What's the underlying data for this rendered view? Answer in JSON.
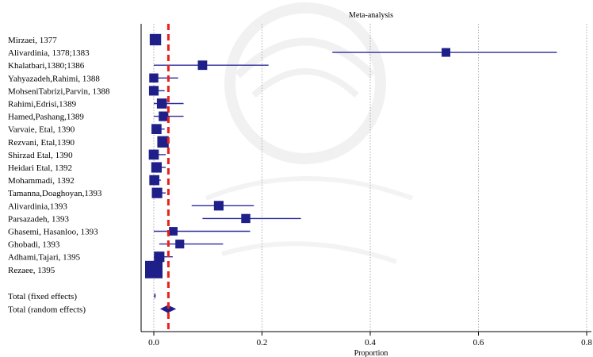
{
  "chart_data": {
    "type": "forest",
    "title": "Meta-analysis",
    "xlabel": "Proportion",
    "xlim": [
      -0.02,
      0.8
    ],
    "xticks": [
      0.0,
      0.2,
      0.4,
      0.6,
      0.8
    ],
    "tick_labels": [
      "0.0",
      "0.2",
      "0.4",
      "0.6",
      "0.8"
    ],
    "grid": "vertical-dotted",
    "reference_line": {
      "value": 0.027,
      "style": "dashed",
      "color": "#e8211c"
    },
    "colors": {
      "marker": "#1f1f8a",
      "ci": "#2b2b9c",
      "diamond": "#1f1f8a"
    },
    "studies": [
      {
        "label": "Mirzaei, 1377",
        "est": 0.003,
        "lo": 0.0,
        "hi": 0.012,
        "weight": 0.55
      },
      {
        "label": "Alivardinia, 1378;1383",
        "est": 0.54,
        "lo": 0.33,
        "hi": 0.745,
        "weight": 0.35
      },
      {
        "label": "Khalatbari,1380;1386",
        "est": 0.09,
        "lo": 0.0,
        "hi": 0.212,
        "weight": 0.4
      },
      {
        "label": "Yahyazadeh,Rahimi, 1388",
        "est": 0.0,
        "lo": 0.0,
        "hi": 0.045,
        "weight": 0.38
      },
      {
        "label": "MohseniTabrizi,Parvin, 1388",
        "est": 0.0,
        "lo": 0.0,
        "hi": 0.02,
        "weight": 0.42
      },
      {
        "label": "Rahimi,Edrisi,1389",
        "est": 0.015,
        "lo": 0.0,
        "hi": 0.055,
        "weight": 0.45
      },
      {
        "label": "Hamed,Pashang,1389",
        "est": 0.018,
        "lo": 0.0,
        "hi": 0.055,
        "weight": 0.42
      },
      {
        "label": "Varvaie, Etal, 1390",
        "est": 0.005,
        "lo": 0.0,
        "hi": 0.02,
        "weight": 0.45
      },
      {
        "label": "Rezvani, Etal,1390",
        "est": 0.017,
        "lo": 0.007,
        "hi": 0.028,
        "weight": 0.55
      },
      {
        "label": "Shirzad Etal, 1390",
        "est": 0.0,
        "lo": 0.0,
        "hi": 0.022,
        "weight": 0.45
      },
      {
        "label": "Heidari Etal, 1392",
        "est": 0.005,
        "lo": 0.0,
        "hi": 0.022,
        "weight": 0.48
      },
      {
        "label": "Mohammadi, 1392",
        "est": 0.001,
        "lo": 0.0,
        "hi": 0.013,
        "weight": 0.45
      },
      {
        "label": "Tamanna,Doaghoyan,1393",
        "est": 0.006,
        "lo": 0.0,
        "hi": 0.022,
        "weight": 0.48
      },
      {
        "label": "Alivardinia,1393",
        "est": 0.12,
        "lo": 0.07,
        "hi": 0.185,
        "weight": 0.42
      },
      {
        "label": "Parsazadeh, 1393",
        "est": 0.17,
        "lo": 0.09,
        "hi": 0.272,
        "weight": 0.38
      },
      {
        "label": "Ghasemi, Hasanloo, 1393",
        "est": 0.036,
        "lo": 0.0,
        "hi": 0.178,
        "weight": 0.34
      },
      {
        "label": "Ghobadi, 1393",
        "est": 0.048,
        "lo": 0.01,
        "hi": 0.128,
        "weight": 0.36
      },
      {
        "label": "Adhami,Tajari, 1395",
        "est": 0.01,
        "lo": 0.0,
        "hi": 0.035,
        "weight": 0.48
      },
      {
        "label": "Rezaee, 1395",
        "est": 0.0,
        "lo": 0.0,
        "hi": 0.002,
        "weight": 1.0
      }
    ],
    "totals": [
      {
        "label": "Total (fixed effects)",
        "est": 0.002,
        "lo": 0.001,
        "hi": 0.003
      },
      {
        "label": "Total (random effects)",
        "est": 0.026,
        "lo": 0.013,
        "hi": 0.04
      }
    ]
  }
}
